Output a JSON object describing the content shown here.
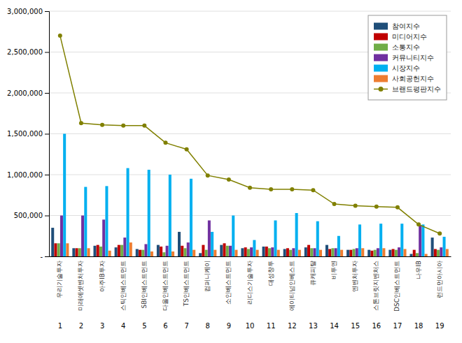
{
  "chart_data": {
    "type": "bar",
    "categories": [
      "1",
      "2",
      "3",
      "4",
      "5",
      "6",
      "7",
      "8",
      "9",
      "10",
      "11",
      "12",
      "13",
      "14",
      "15",
      "16",
      "17",
      "18",
      "19"
    ],
    "annotations": [
      "우리기술투자",
      "미래에셋벤처투자",
      "아주IB투자",
      "스틱인베스트먼트",
      "SBI인베스트먼트",
      "다올인베스트먼트",
      "TS인베스트먼트",
      "컴퍼니케이",
      "소인베스트먼트",
      "리디스기술투자",
      "대성창투",
      "에이티넘인베스트",
      "큐캐피탈",
      "비투엔",
      "엔벤처투자",
      "스톤브릿지벤처스",
      "DSC인베스트먼트",
      "나우IB",
      "런드먼아시아"
    ],
    "series": [
      {
        "name": "참여지수",
        "color": "#1f4e79",
        "values": [
          350000,
          100000,
          130000,
          110000,
          90000,
          140000,
          300000,
          40000,
          140000,
          100000,
          120000,
          90000,
          110000,
          140000,
          80000,
          80000,
          80000,
          30000,
          230000
        ]
      },
      {
        "name": "미디어지수",
        "color": "#c00000",
        "values": [
          160000,
          100000,
          140000,
          140000,
          80000,
          120000,
          130000,
          140000,
          160000,
          110000,
          120000,
          100000,
          140000,
          90000,
          80000,
          70000,
          90000,
          80000,
          90000
        ]
      },
      {
        "name": "소통지수",
        "color": "#70ad47",
        "values": [
          160000,
          100000,
          120000,
          140000,
          80000,
          50000,
          100000,
          80000,
          130000,
          90000,
          100000,
          80000,
          100000,
          100000,
          90000,
          80000,
          80000,
          40000,
          80000
        ]
      },
      {
        "name": "커뮤니티지수",
        "color": "#7030a0",
        "values": [
          500000,
          500000,
          450000,
          230000,
          150000,
          130000,
          170000,
          440000,
          130000,
          110000,
          110000,
          100000,
          100000,
          100000,
          100000,
          100000,
          110000,
          380000,
          110000
        ]
      },
      {
        "name": "시장지수",
        "color": "#00b0f0",
        "values": [
          1500000,
          850000,
          860000,
          1080000,
          1060000,
          1000000,
          950000,
          300000,
          500000,
          200000,
          440000,
          530000,
          430000,
          250000,
          390000,
          400000,
          400000,
          390000,
          240000
        ]
      },
      {
        "name": "사회공헌지수",
        "color": "#ed7d31",
        "values": [
          160000,
          100000,
          70000,
          170000,
          60000,
          60000,
          80000,
          80000,
          80000,
          80000,
          80000,
          80000,
          80000,
          80000,
          100000,
          100000,
          90000,
          30000,
          90000
        ]
      },
      {
        "name": "브랜드평판지수",
        "color": "#808000",
        "type": "line",
        "marker": "circle",
        "values": [
          2700000,
          1630000,
          1610000,
          1600000,
          1600000,
          1390000,
          1310000,
          990000,
          940000,
          840000,
          820000,
          820000,
          810000,
          640000,
          620000,
          610000,
          600000,
          390000,
          280000
        ]
      }
    ],
    "ylim": [
      0,
      3000000
    ],
    "yticks": [
      {
        "value": 0,
        "label": "-"
      },
      {
        "value": 500000,
        "label": "500,000"
      },
      {
        "value": 1000000,
        "label": "1,000,000"
      },
      {
        "value": 1500000,
        "label": "1,500,000"
      },
      {
        "value": 2000000,
        "label": "2,000,000"
      },
      {
        "value": 2500000,
        "label": "2,500,000"
      },
      {
        "value": 3000000,
        "label": "3,000,000"
      }
    ],
    "grid": true,
    "legend": "upper right"
  }
}
